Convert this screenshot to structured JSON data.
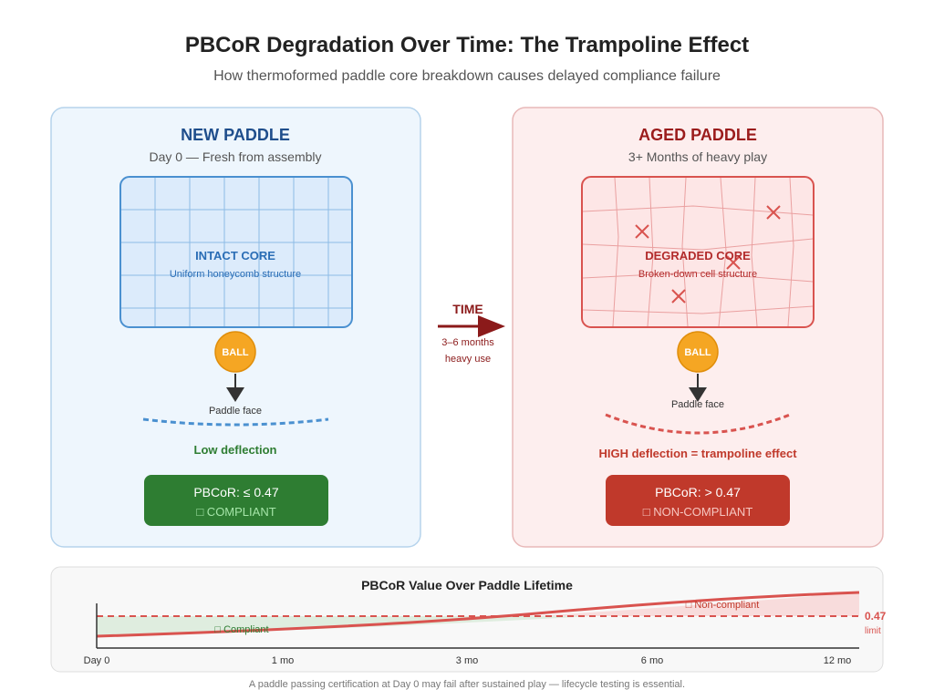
{
  "header": {
    "title": "PBCoR Degradation Over Time: The Trampoline Effect",
    "subtitle": "How thermoformed paddle core breakdown causes delayed compliance failure"
  },
  "new_paddle": {
    "title": "NEW PADDLE",
    "subtitle": "Day 0 — Fresh from assembly",
    "core_label": "INTACT CORE",
    "core_sub": "Uniform honeycomb structure",
    "ball": "BALL",
    "face": "Paddle face",
    "deflection": "Low deflection",
    "badge_value": "PBCoR: ≤ 0.47",
    "badge_status": "□ COMPLIANT"
  },
  "transition": {
    "label": "TIME",
    "line1": "3–6 months",
    "line2": "heavy use"
  },
  "aged_paddle": {
    "title": "AGED PADDLE",
    "subtitle": "3+ Months of heavy play",
    "core_label": "DEGRADED CORE",
    "core_sub": "Broken-down cell structure",
    "ball": "BALL",
    "face": "Paddle face",
    "deflection": "HIGH deflection = trampoline effect",
    "badge_value": "PBCoR: > 0.47",
    "badge_status": "□ NON-COMPLIANT"
  },
  "lifetime": {
    "title": "PBCoR Value Over Paddle Lifetime",
    "compliant": "□ Compliant",
    "noncompliant": "□ Non-compliant",
    "limit_value": "0.47",
    "limit_label": "limit",
    "ticks": [
      "Day 0",
      "1 mo",
      "3 mo",
      "6 mo",
      "12 mo"
    ]
  },
  "footer": "A paddle passing certification at Day 0 may fail after sustained play — lifecycle testing is essential.",
  "colors": {
    "blue": "#1f4e8c",
    "red": "#b22b2b",
    "green": "#2e7d32",
    "ball": "#f5a623"
  }
}
